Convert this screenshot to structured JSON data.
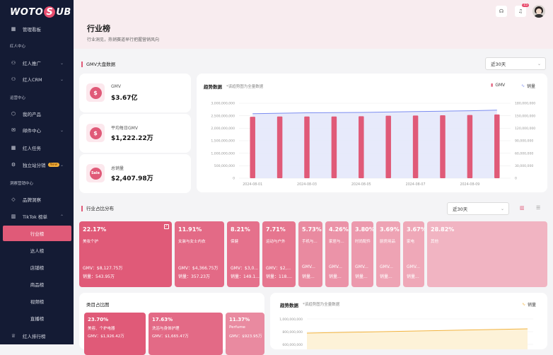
{
  "brand": {
    "logo_left": "WOTO",
    "logo_mid": "S",
    "logo_right": "UB"
  },
  "sidebar": {
    "top_item": {
      "label": "管理看板",
      "icon": "calendar-icon"
    },
    "group1": "红人中心",
    "items1": [
      {
        "label": "红人推广",
        "icon": "user-icon",
        "chevron": true
      },
      {
        "label": "红人CRM",
        "icon": "user-icon",
        "chevron": true
      }
    ],
    "group2": "运营中心",
    "items2": [
      {
        "label": "我的产品",
        "icon": "box-icon",
        "chevron": false
      },
      {
        "label": "邮件中心",
        "icon": "mail-icon",
        "chevron": true
      },
      {
        "label": "红人任务",
        "icon": "calendar-icon",
        "chevron": false
      },
      {
        "label": "独立站分销",
        "icon": "gear-icon",
        "chevron": true,
        "badge": "New"
      }
    ],
    "group3": "洞察营销中心",
    "items3": [
      {
        "label": "品牌洞察",
        "icon": "diamond-icon",
        "chevron": false
      },
      {
        "label": "TikTok 榜单",
        "icon": "chart-icon",
        "chevron": true
      }
    ],
    "subitems": [
      "行业榜",
      "达人榜",
      "店铺榜",
      "商品榜",
      "视频榜",
      "直播榜"
    ],
    "bottom_item": {
      "label": "红人排行榜",
      "icon": "trophy-icon"
    }
  },
  "header": {
    "title": "行业榜",
    "subtitle": "行业洞见，热销赛道早行把握营销风向",
    "notification_count": "15"
  },
  "gmv_section": {
    "title": "GMV大盘数据",
    "period": "近30天",
    "kpis": [
      {
        "label": "GMV",
        "value": "$3.67亿",
        "icon": "dollar-icon",
        "glyph": "$"
      },
      {
        "label": "平均每日GMV",
        "value": "$1,222.22万",
        "icon": "dollar-icon",
        "glyph": "$"
      },
      {
        "label": "总销量",
        "value": "$2,407.98万",
        "icon": "sale-icon",
        "glyph": "Sale"
      }
    ]
  },
  "trend_chart": {
    "title": "趋势数据",
    "note": "*该趋势图为全量数据",
    "legend_gmv": "GMV",
    "legend_sales": "销量",
    "colors": {
      "bar": "#e05a78",
      "line": "#7b8cf0",
      "area": "#e4e8fb"
    }
  },
  "chart_data": {
    "type": "bar",
    "left_ticks": [
      "3,000,000,000",
      "2,500,000,000",
      "2,000,000,000",
      "1,500,000,000",
      "1,000,000,000",
      "500,000,000",
      "0"
    ],
    "right_ticks": [
      "180,000,000",
      "150,000,000",
      "120,000,000",
      "90,000,000",
      "60,000,000",
      "30,000,000",
      "0"
    ],
    "x_tick_labels": [
      "2024-08-01",
      "2024-08-03",
      "2024-08-05",
      "2024-08-07",
      "2024-08-09"
    ],
    "categories": [
      "2024-08-01",
      "2024-08-02",
      "2024-08-03",
      "2024-08-04",
      "2024-08-05",
      "2024-08-06",
      "2024-08-07",
      "2024-08-08",
      "2024-08-09",
      "2024-08-10"
    ],
    "ylim_left": [
      0,
      3000000000
    ],
    "ylim_right": [
      0,
      180000000
    ],
    "series": [
      {
        "name": "GMV",
        "values": [
          2460000000,
          2470000000,
          2470000000,
          2470000000,
          2480000000,
          2500000000,
          2510000000,
          2520000000,
          2530000000,
          2550000000
        ]
      },
      {
        "name": "销量",
        "values": [
          155000000,
          156000000,
          157000000,
          157500000,
          158000000,
          159000000,
          160000000,
          161000000,
          162000000,
          163500000
        ]
      }
    ]
  },
  "industry_section": {
    "title": "行业占比分布",
    "period": "近30天",
    "tiles": [
      {
        "pct": "22.17%",
        "name": "美妆个护",
        "gmv": "GMV：$8,127.75万",
        "sales": "销量：543.95万",
        "color": "#e05a78",
        "checked": true
      },
      {
        "pct": "11.91%",
        "name": "女装与女士内衣",
        "gmv": "GMV：$4,366.75万",
        "sales": "销量：357.23万",
        "color": "#e36a86",
        "checked": false
      },
      {
        "pct": "8.21%",
        "name": "保健",
        "gmv": "GMV：$3,0...",
        "sales": "销量：149.1...",
        "color": "#e5718c",
        "checked": false
      },
      {
        "pct": "7.71%",
        "name": "运动与户外",
        "gmv": "GMV：$2,...",
        "sales": "销量：118....",
        "color": "#e6768f",
        "checked": false
      },
      {
        "pct": "5.73%",
        "name": "手机与...",
        "gmv": "GMV...",
        "sales": "销量...",
        "color": "#e98aa0",
        "checked": false
      },
      {
        "pct": "4.26%",
        "name": "家居与...",
        "gmv": "GMV...",
        "sales": "销量...",
        "color": "#eb93a8",
        "checked": false
      },
      {
        "pct": "3.80%",
        "name": "时尚配件",
        "gmv": "GMV...",
        "sales": "销量...",
        "color": "#ec99ad",
        "checked": false
      },
      {
        "pct": "3.69%",
        "name": "厨房用品",
        "gmv": "GMV...",
        "sales": "销量...",
        "color": "#eea3b4",
        "checked": false
      },
      {
        "pct": "3.67%",
        "name": "家电",
        "gmv": "GMV...",
        "sales": "销量...",
        "color": "#efa8b8",
        "checked": false
      },
      {
        "pct": "28.82%",
        "name": "其他",
        "gmv": "",
        "sales": "",
        "color": "#f1b4c2",
        "checked": false
      }
    ]
  },
  "category_section": {
    "title": "类目占比图",
    "tiles": [
      {
        "pct": "23.70%",
        "name": "美容、个护电器",
        "gmv": "GMV：$1,926.42万",
        "color": "#e05a78"
      },
      {
        "pct": "17.63%",
        "name": "洗浴与身体护理",
        "gmv": "GMV：$1,665.47万",
        "color": "#e36a86"
      },
      {
        "pct": "11.37%",
        "name": "Perfume",
        "gmv": "GMV：$923.95万",
        "color": "#e98aa0"
      }
    ]
  },
  "trend2": {
    "title": "趋势数据",
    "note": "*该趋势图为全量数据",
    "legend_sales": "销量",
    "ticks": [
      "1,000,000,000",
      "800,000,000",
      "600,000,000"
    ]
  }
}
